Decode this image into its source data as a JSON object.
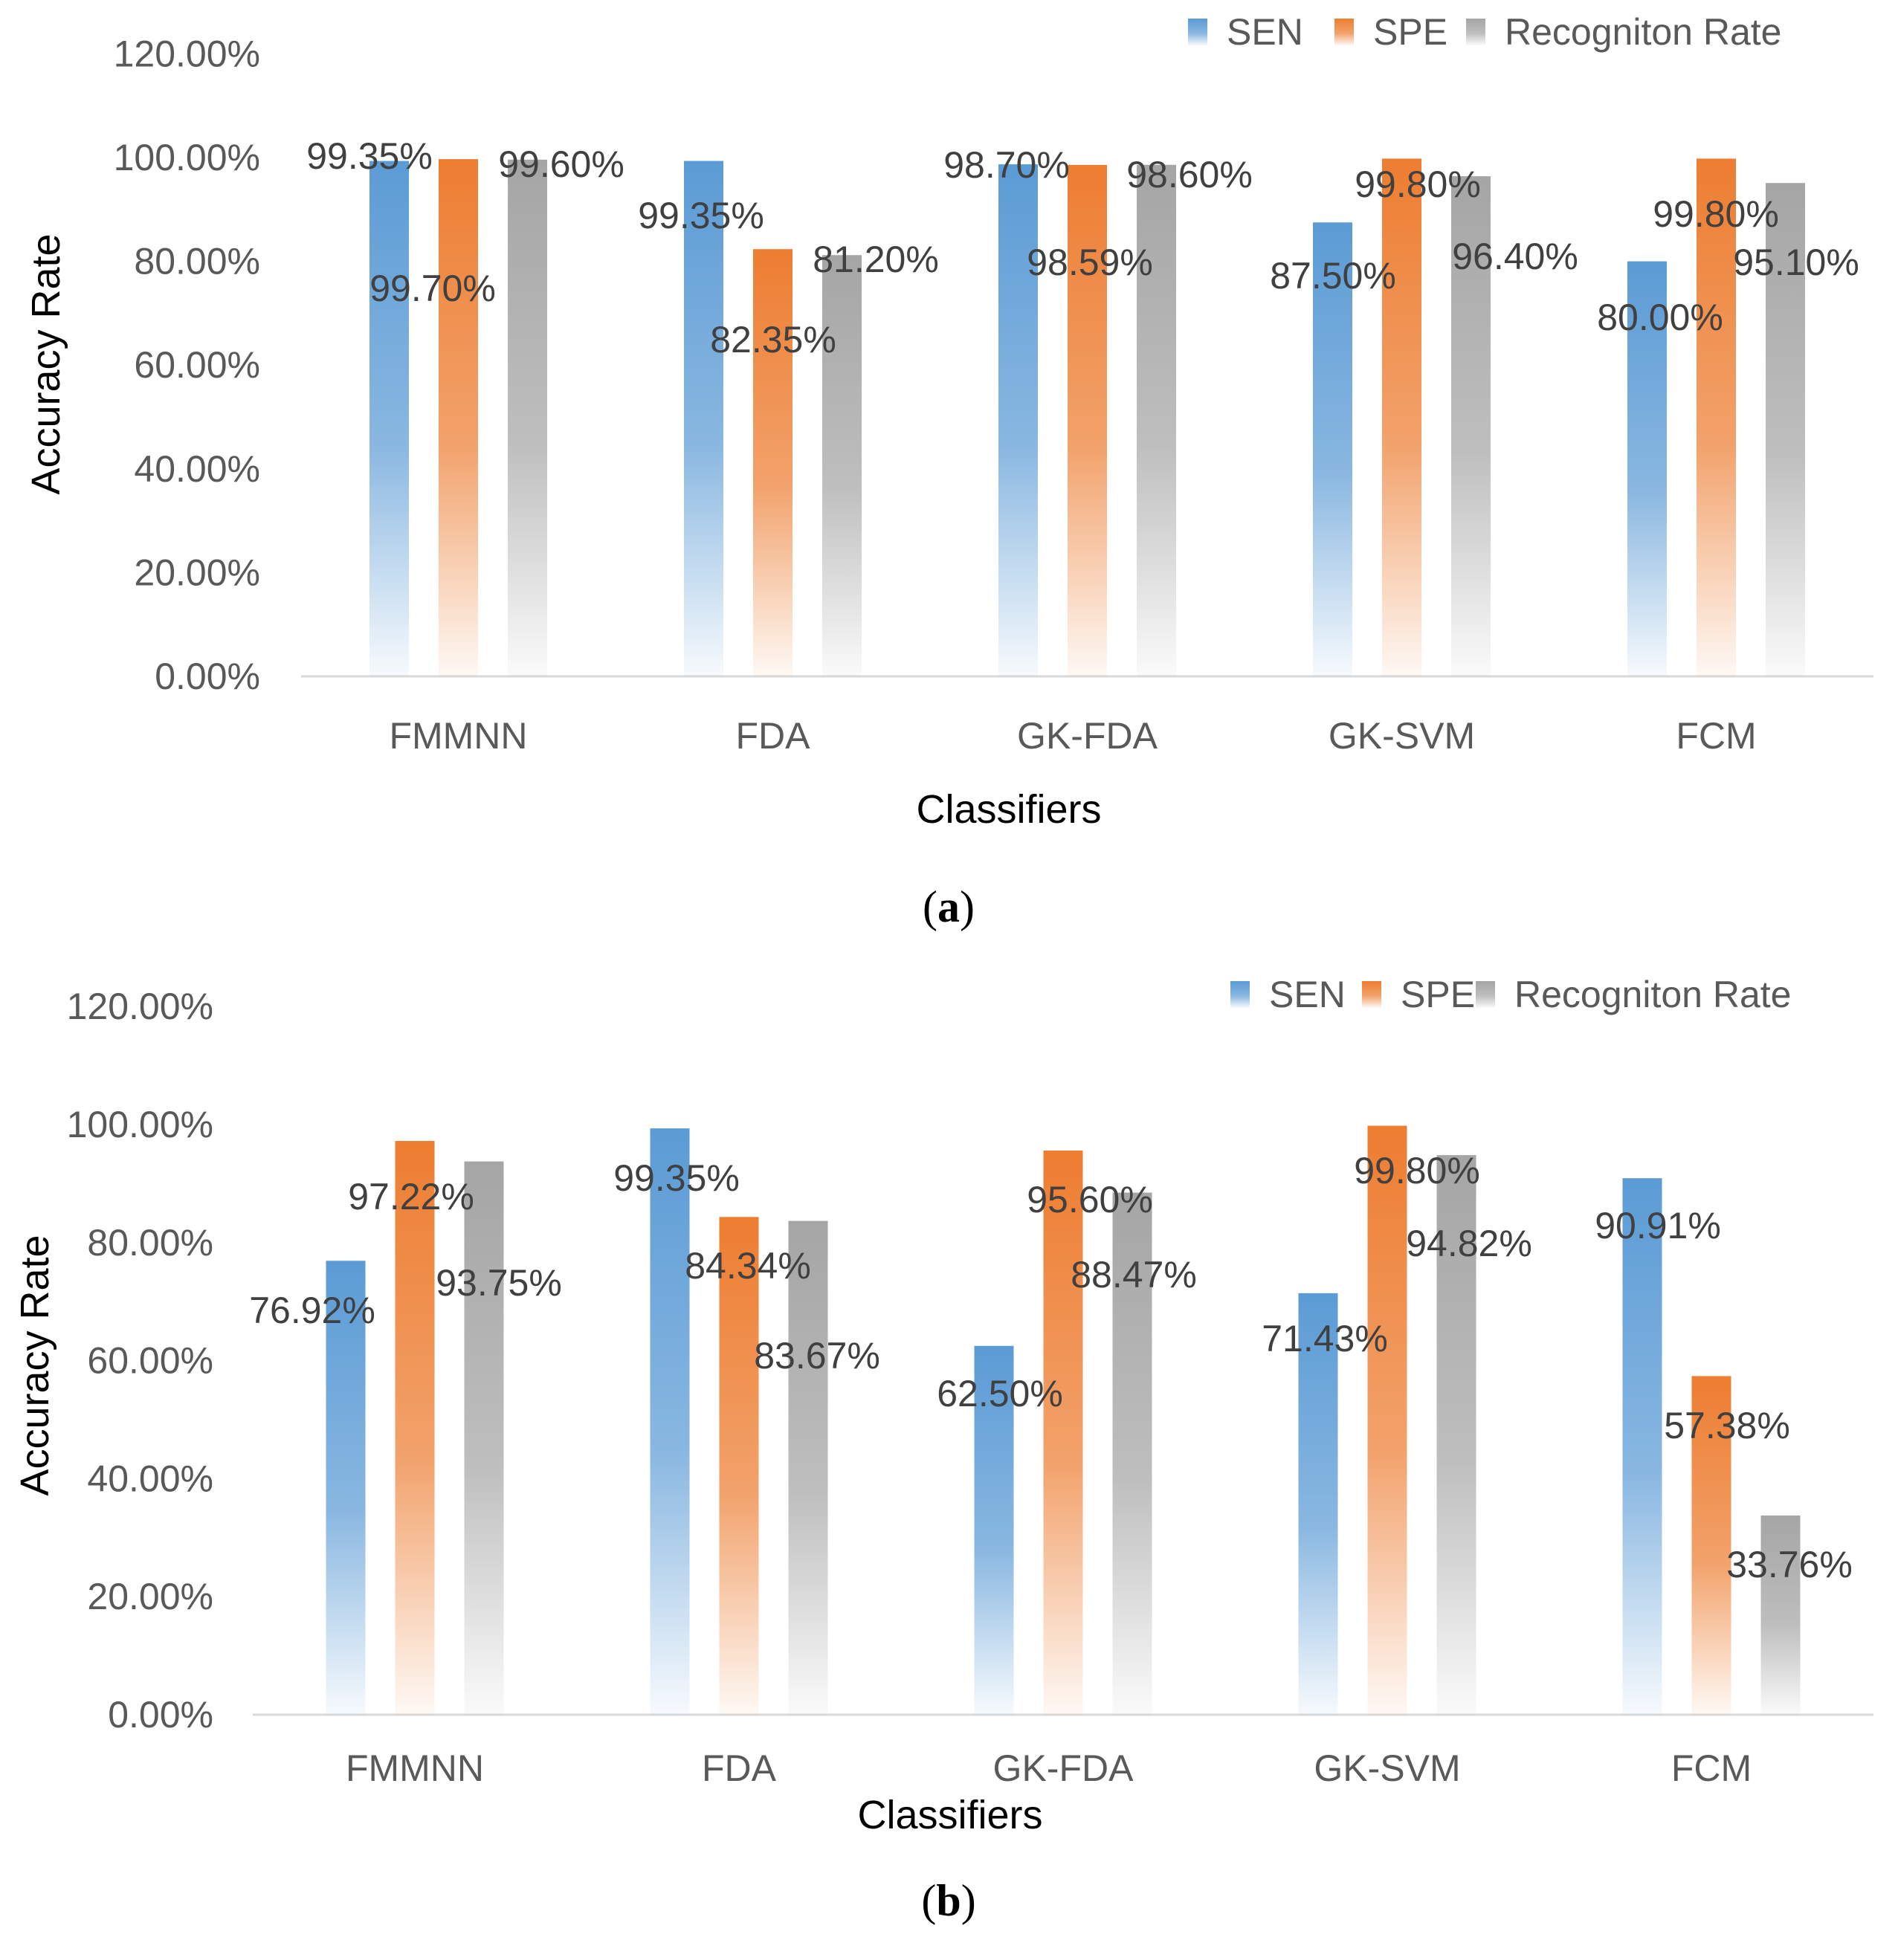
{
  "colors": {
    "SEN": "#5b9bd5",
    "SPE": "#ed7d31",
    "Recogniton Rate": "#a5a5a5",
    "axis": "#d9d9d9",
    "tick_text": "#595959",
    "label_text": "#404040"
  },
  "chart_data": [
    {
      "type": "bar",
      "panel": "a",
      "caption_letter": "a",
      "xlabel": "Classifiers",
      "ylabel": "Accuracy Rate",
      "ylim": [
        0,
        120
      ],
      "yticks": [
        "0.00%",
        "20.00%",
        "40.00%",
        "60.00%",
        "80.00%",
        "100.00%",
        "120.00%"
      ],
      "categories": [
        "FMMNN",
        "FDA",
        "GK-FDA",
        "GK-SVM",
        "FCM"
      ],
      "legend_position": "top-right",
      "series": [
        {
          "name": "SEN",
          "values": [
            99.35,
            99.35,
            98.7,
            87.5,
            80.0
          ],
          "labels": [
            "99.35%",
            "99.35%",
            "98.70%",
            "87.50%",
            "80.00%"
          ]
        },
        {
          "name": "SPE",
          "values": [
            99.7,
            82.35,
            98.59,
            99.8,
            99.8
          ],
          "labels": [
            "99.70%",
            "82.35%",
            "98.59%",
            "99.80%",
            "99.80%"
          ]
        },
        {
          "name": "Recogniton Rate",
          "values": [
            99.6,
            81.2,
            98.6,
            96.4,
            95.1
          ],
          "labels": [
            "99.60%",
            "81.20%",
            "98.60%",
            "96.40%",
            "95.10%"
          ]
        }
      ]
    },
    {
      "type": "bar",
      "panel": "b",
      "caption_letter": "b",
      "xlabel": "Classifiers",
      "ylabel": "Accuracy Rate",
      "ylim": [
        0,
        120
      ],
      "yticks": [
        "0.00%",
        "20.00%",
        "40.00%",
        "60.00%",
        "80.00%",
        "100.00%",
        "120.00%"
      ],
      "categories": [
        "FMMNN",
        "FDA",
        "GK-FDA",
        "GK-SVM",
        "FCM"
      ],
      "legend_position": "top-right",
      "series": [
        {
          "name": "SEN",
          "values": [
            76.92,
            99.35,
            62.5,
            71.43,
            90.91
          ],
          "labels": [
            "76.92%",
            "99.35%",
            "62.50%",
            "71.43%",
            "90.91%"
          ]
        },
        {
          "name": "SPE",
          "values": [
            97.22,
            84.34,
            95.6,
            99.8,
            57.38
          ],
          "labels": [
            "97.22%",
            "84.34%",
            "95.60%",
            "99.80%",
            "57.38%"
          ]
        },
        {
          "name": "Recogniton Rate",
          "values": [
            93.75,
            83.67,
            88.47,
            94.82,
            33.76
          ],
          "labels": [
            "93.75%",
            "83.67%",
            "88.47%",
            "94.82%",
            "33.76%"
          ]
        }
      ]
    }
  ]
}
